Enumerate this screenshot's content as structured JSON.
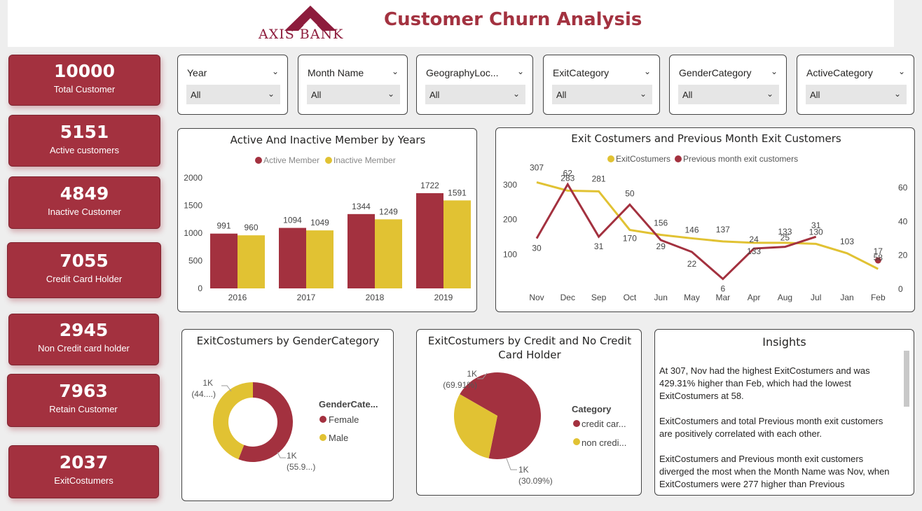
{
  "header": {
    "title": "Customer Churn Analysis",
    "logo_text": "AXIS BANK"
  },
  "kpis": [
    {
      "value": "10000",
      "label": "Total Customer"
    },
    {
      "value": "5151",
      "label": "Active customers"
    },
    {
      "value": "4849",
      "label": "Inactive Customer"
    },
    {
      "value": "7055",
      "label": "Credit Card Holder"
    },
    {
      "value": "2945",
      "label": "Non Credit card holder"
    },
    {
      "value": "7963",
      "label": "Retain Customer"
    },
    {
      "value": "2037",
      "label": "ExitCostumers"
    }
  ],
  "slicers": [
    {
      "title": "Year",
      "value": "All"
    },
    {
      "title": "Month Name",
      "value": "All"
    },
    {
      "title": "GeographyLoc...",
      "value": "All"
    },
    {
      "title": "ExitCategory",
      "value": "All"
    },
    {
      "title": "GenderCategory",
      "value": "All"
    },
    {
      "title": "ActiveCategory",
      "value": "All"
    }
  ],
  "colors": {
    "brand": "#a3313f",
    "accent": "#e1c233",
    "header_red": "#8d1c3c"
  },
  "icons": {
    "chevron": "chevron-down-icon"
  },
  "insights": {
    "title": "Insights",
    "paragraphs": [
      "At 307, Nov had the highest ExitCostumers and was 429.31% higher than Feb, which had the lowest ExitCostumers at 58.",
      "ExitCostumers and total Previous month exit customers are positively correlated with each other.",
      "ExitCostumers and Previous month exit customers diverged the most when the Month Name was Nov, when ExitCostumers were 277 higher than Previous"
    ]
  },
  "chart_data": [
    {
      "type": "bar",
      "title": "Active And Inactive Member by Years",
      "categories": [
        "2016",
        "2017",
        "2018",
        "2019"
      ],
      "series": [
        {
          "name": "Active Member",
          "values": [
            991,
            1094,
            1344,
            1722
          ]
        },
        {
          "name": "Inactive Member",
          "values": [
            960,
            1049,
            1249,
            1591
          ]
        }
      ],
      "ylim": [
        0,
        2000
      ],
      "yticks": [
        "0",
        "500",
        "1000",
        "1500",
        "2000"
      ],
      "legend": "top-center"
    },
    {
      "type": "line",
      "title": "Exit Costumers and Previous Month Exit Customers",
      "categories": [
        "Nov",
        "Dec",
        "Sep",
        "Oct",
        "Jun",
        "May",
        "Mar",
        "Apr",
        "Aug",
        "Jul",
        "Jan",
        "Feb"
      ],
      "series": [
        {
          "name": "ExitCostumers",
          "axis": "left",
          "values": [
            307,
            283,
            281,
            170,
            156,
            146,
            137,
            133,
            133,
            130,
            103,
            58
          ],
          "labels": [
            "307",
            "283",
            "281",
            "170",
            "156",
            "146",
            "137",
            "133",
            "133",
            "130",
            "103",
            "58"
          ]
        },
        {
          "name": "Previous month exit customers",
          "axis": "right",
          "values": [
            30,
            62,
            31,
            50,
            29,
            22,
            6,
            24,
            25,
            31,
            null,
            17
          ],
          "labels": [
            "30",
            "62",
            "31",
            "50",
            "29",
            "22",
            "6",
            "24",
            "25",
            "31",
            "",
            "17"
          ]
        }
      ],
      "ylim_left": [
        0,
        340
      ],
      "yticks_left": [
        "100",
        "200",
        "300"
      ],
      "ylim_right": [
        0,
        70
      ],
      "yticks_right": [
        "0",
        "20",
        "40",
        "60"
      ],
      "legend": "top-center"
    },
    {
      "type": "pie",
      "title": "ExitCostumers by GenderCategory",
      "donut": true,
      "legend_title": "GenderCate...",
      "slices": [
        {
          "name": "Female",
          "value": 55.9,
          "label_top": "1K",
          "label_bottom": "(55.9...)"
        },
        {
          "name": "Male",
          "value": 44.1,
          "label_top": "1K",
          "label_bottom": "(44....)"
        }
      ]
    },
    {
      "type": "pie",
      "title": "ExitCostumers by Credit and No Credit Card Holder",
      "title_lines": [
        "ExitCostumers by Credit and No Credit",
        "Card Holder"
      ],
      "donut": false,
      "legend_title": "Category",
      "slices": [
        {
          "name": "credit car...",
          "value": 69.91,
          "label_top": "1K",
          "label_bottom": "(69.91%)"
        },
        {
          "name": "non credi...",
          "value": 30.09,
          "label_top": "1K",
          "label_bottom": "(30.09%)"
        }
      ]
    }
  ]
}
